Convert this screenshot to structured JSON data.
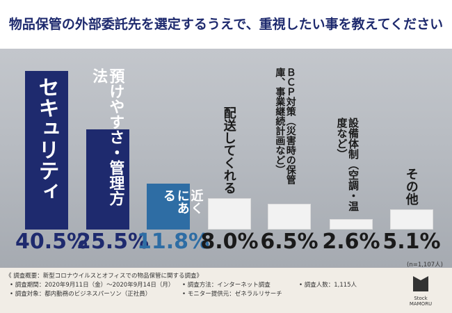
{
  "chart_data": {
    "type": "bar",
    "title": "物品保管の外部委託先を選定するうえで、重視したい事を教えてください",
    "categories": [
      "セキュリティ",
      "預けやすさ・管理方法",
      "近くにある",
      "配送してくれる",
      "ＢＣＰ対策（災害時の保管庫、事業継続計画など）",
      "設備体制（空調・温度など）",
      "その他"
    ],
    "values": [
      40.5,
      25.5,
      11.8,
      8.0,
      6.5,
      2.6,
      5.1
    ],
    "value_labels": [
      "40.5%",
      "25.5%",
      "11.8%",
      "8.0%",
      "6.5%",
      "2.6%",
      "5.1%"
    ],
    "colors": [
      "#1e2a6e",
      "#1e2a6e",
      "#2e6da4",
      "#f2f2f2",
      "#f2f2f2",
      "#f2f2f2",
      "#f2f2f2"
    ],
    "label_colors": [
      "#ffffff",
      "#ffffff",
      "#ffffff",
      "#1a1a1a",
      "#1a1a1a",
      "#1a1a1a",
      "#1a1a1a"
    ],
    "value_colors": [
      "#1e2a6e",
      "#1e2a6e",
      "#2e6da4",
      "#1a1a1a",
      "#1a1a1a",
      "#1a1a1a",
      "#1a1a1a"
    ],
    "sample_note": "(n=1,107人)"
  },
  "footer": {
    "heading": "《 調査概要：新型コロナウイルスとオフィスでの物品保管に関する調査》",
    "items": [
      "• 調査期間：2020年9月11日（金）～2020年9月14日（月）",
      "• 調査方法：インターネット調査",
      "• 調査人数：1,115人",
      "• 調査対象：都内勤務のビジネスパーソン（正社員）",
      "• モニター提供元：ゼネラルリサーチ"
    ],
    "logo": "Stock MAMORU"
  }
}
